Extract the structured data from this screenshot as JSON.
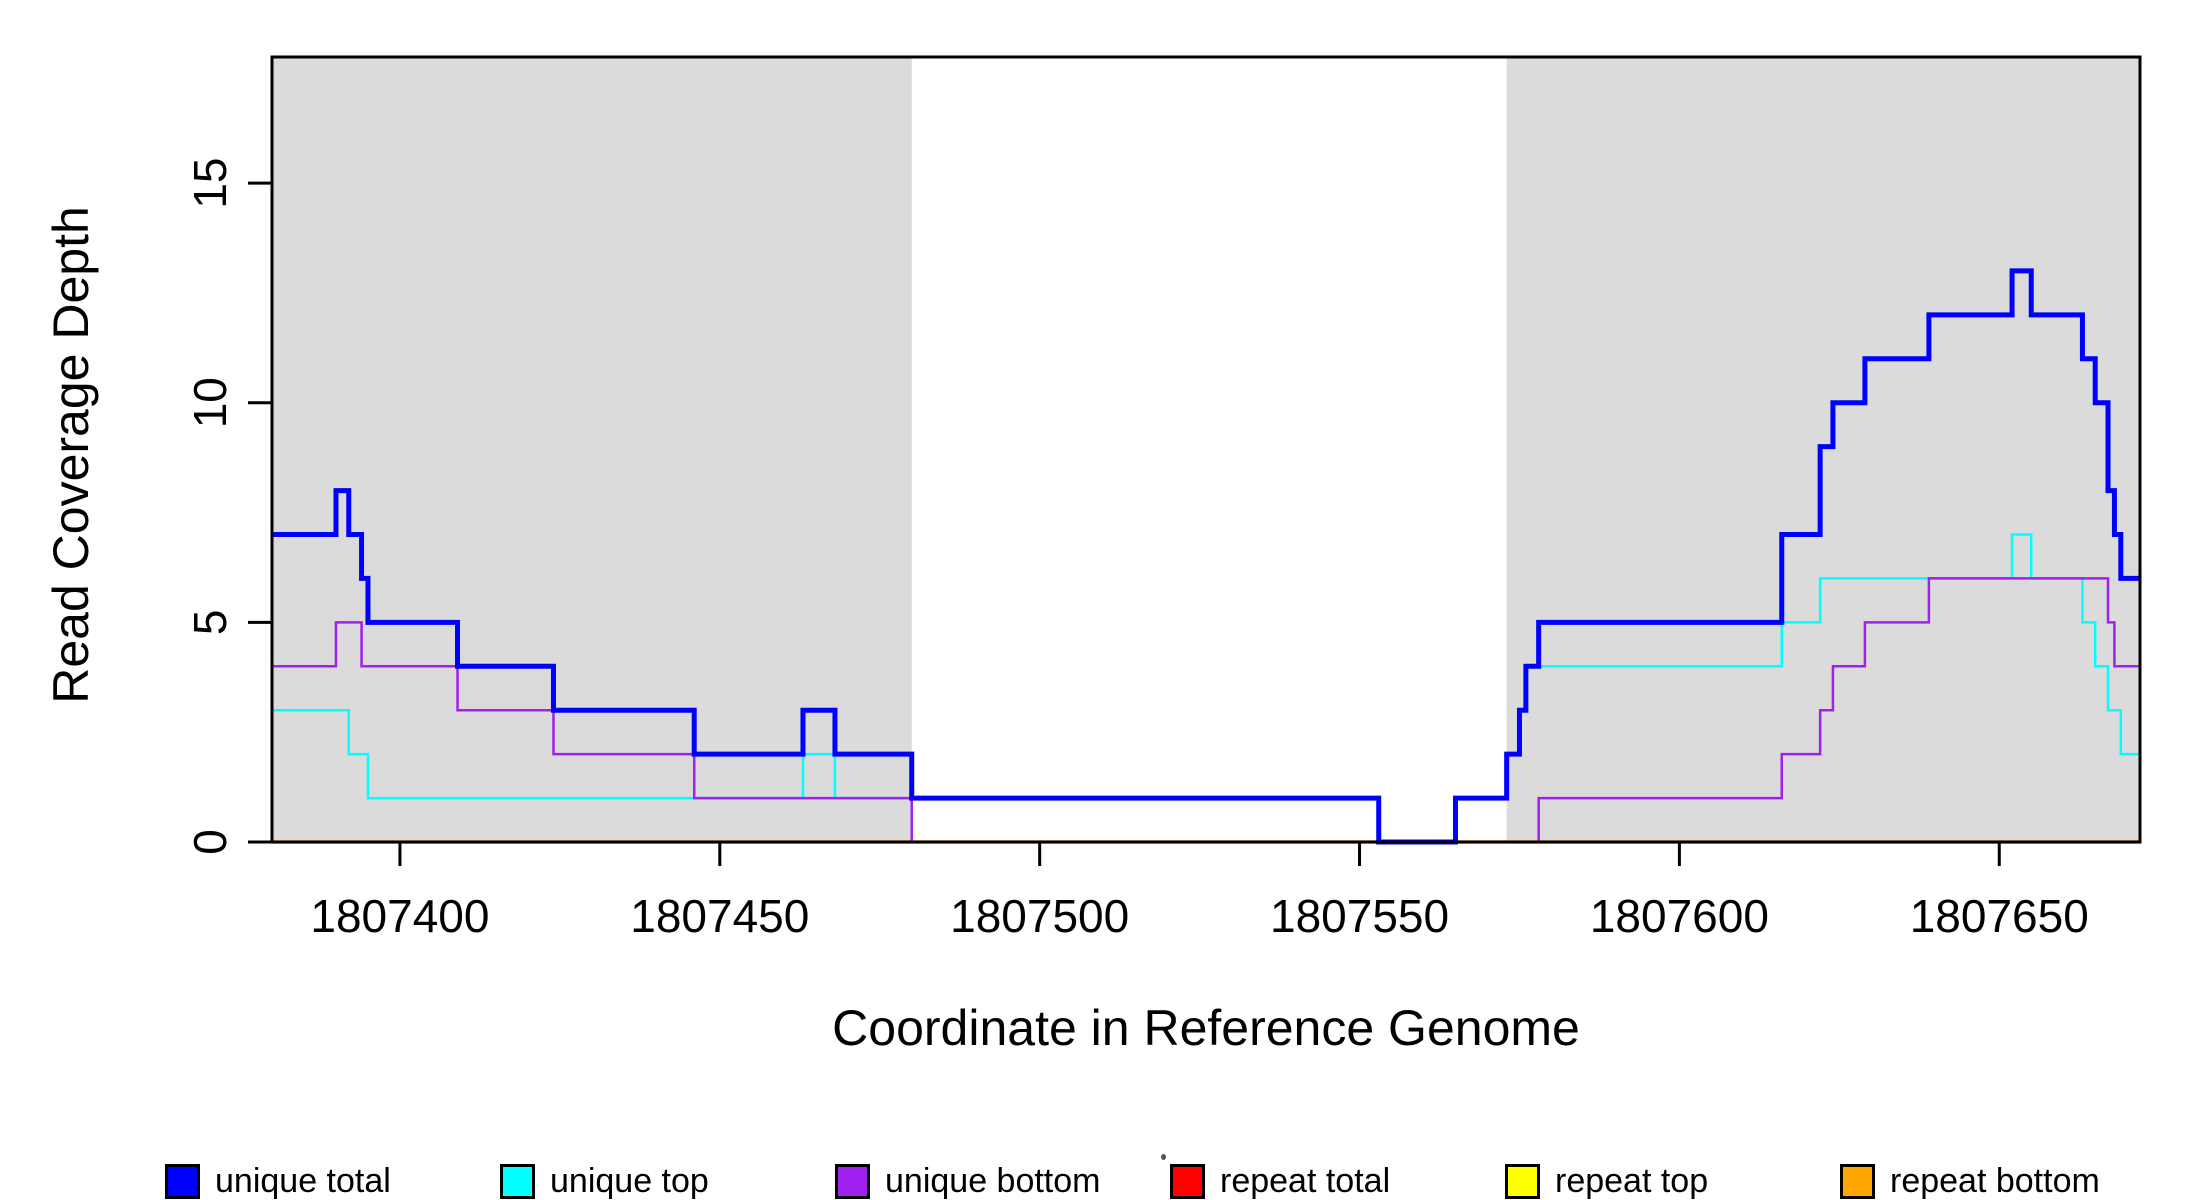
{
  "chart_data": {
    "type": "line",
    "subtype": "step",
    "title": "",
    "xlabel": "Coordinate in Reference Genome",
    "ylabel": "Read Coverage Depth",
    "xlim": [
      1807380,
      1807672
    ],
    "ylim": [
      0,
      17.87
    ],
    "x_ticks": [
      1807400,
      1807450,
      1807500,
      1807550,
      1807600,
      1807650
    ],
    "y_ticks": [
      0,
      5,
      10,
      15
    ],
    "grid": "off",
    "legend_position": "bottom",
    "axis_color": "#000000",
    "background_shading": {
      "color": "#DBDBDB",
      "regions": [
        [
          1807380,
          1807480
        ],
        [
          1807573,
          1807672
        ]
      ]
    },
    "draw_order": [
      "repeat total",
      "repeat top",
      "repeat bottom",
      "unique top",
      "unique bottom",
      "unique total"
    ],
    "x_end": 1807672,
    "series": [
      {
        "name": "unique total",
        "color": "#0000FF",
        "stroke_width": 5,
        "steps": [
          [
            1807380,
            7
          ],
          [
            1807390,
            8
          ],
          [
            1807392,
            7
          ],
          [
            1807394,
            6
          ],
          [
            1807395,
            5
          ],
          [
            1807409,
            4
          ],
          [
            1807424,
            3
          ],
          [
            1807446,
            2
          ],
          [
            1807463,
            3
          ],
          [
            1807468,
            2
          ],
          [
            1807480,
            1
          ],
          [
            1807553,
            0
          ],
          [
            1807565,
            1
          ],
          [
            1807573,
            2
          ],
          [
            1807575,
            3
          ],
          [
            1807576,
            4
          ],
          [
            1807578,
            5
          ],
          [
            1807616,
            7
          ],
          [
            1807622,
            9
          ],
          [
            1807624,
            10
          ],
          [
            1807629,
            11
          ],
          [
            1807639,
            12
          ],
          [
            1807652,
            13
          ],
          [
            1807655,
            12
          ],
          [
            1807663,
            11
          ],
          [
            1807665,
            10
          ],
          [
            1807667,
            8
          ],
          [
            1807668,
            7
          ],
          [
            1807669,
            6
          ]
        ]
      },
      {
        "name": "unique top",
        "color": "#00FFFF",
        "stroke_width": 2.5,
        "steps": [
          [
            1807380,
            3
          ],
          [
            1807392,
            2
          ],
          [
            1807395,
            1
          ],
          [
            1807463,
            2
          ],
          [
            1807468,
            1
          ],
          [
            1807553,
            0
          ],
          [
            1807565,
            1
          ],
          [
            1807573,
            2
          ],
          [
            1807575,
            3
          ],
          [
            1807576,
            4
          ],
          [
            1807616,
            5
          ],
          [
            1807622,
            6
          ],
          [
            1807652,
            7
          ],
          [
            1807655,
            6
          ],
          [
            1807663,
            5
          ],
          [
            1807665,
            4
          ],
          [
            1807667,
            3
          ],
          [
            1807669,
            2
          ]
        ]
      },
      {
        "name": "unique bottom",
        "color": "#A020F0",
        "stroke_width": 2.5,
        "steps": [
          [
            1807380,
            4
          ],
          [
            1807390,
            5
          ],
          [
            1807394,
            4
          ],
          [
            1807409,
            3
          ],
          [
            1807424,
            2
          ],
          [
            1807446,
            1
          ],
          [
            1807480,
            0
          ],
          [
            1807578,
            1
          ],
          [
            1807616,
            2
          ],
          [
            1807622,
            3
          ],
          [
            1807624,
            4
          ],
          [
            1807629,
            5
          ],
          [
            1807639,
            6
          ],
          [
            1807667,
            5
          ],
          [
            1807668,
            4
          ]
        ]
      },
      {
        "name": "repeat total",
        "color": "#FF0000",
        "stroke_width": 2.5,
        "steps": [
          [
            1807380,
            0
          ]
        ]
      },
      {
        "name": "repeat top",
        "color": "#FFFF00",
        "stroke_width": 2.5,
        "steps": [
          [
            1807380,
            0
          ]
        ]
      },
      {
        "name": "repeat bottom",
        "color": "#FFA500",
        "stroke_width": 3.5,
        "steps": [
          [
            1807380,
            0
          ]
        ]
      }
    ]
  }
}
